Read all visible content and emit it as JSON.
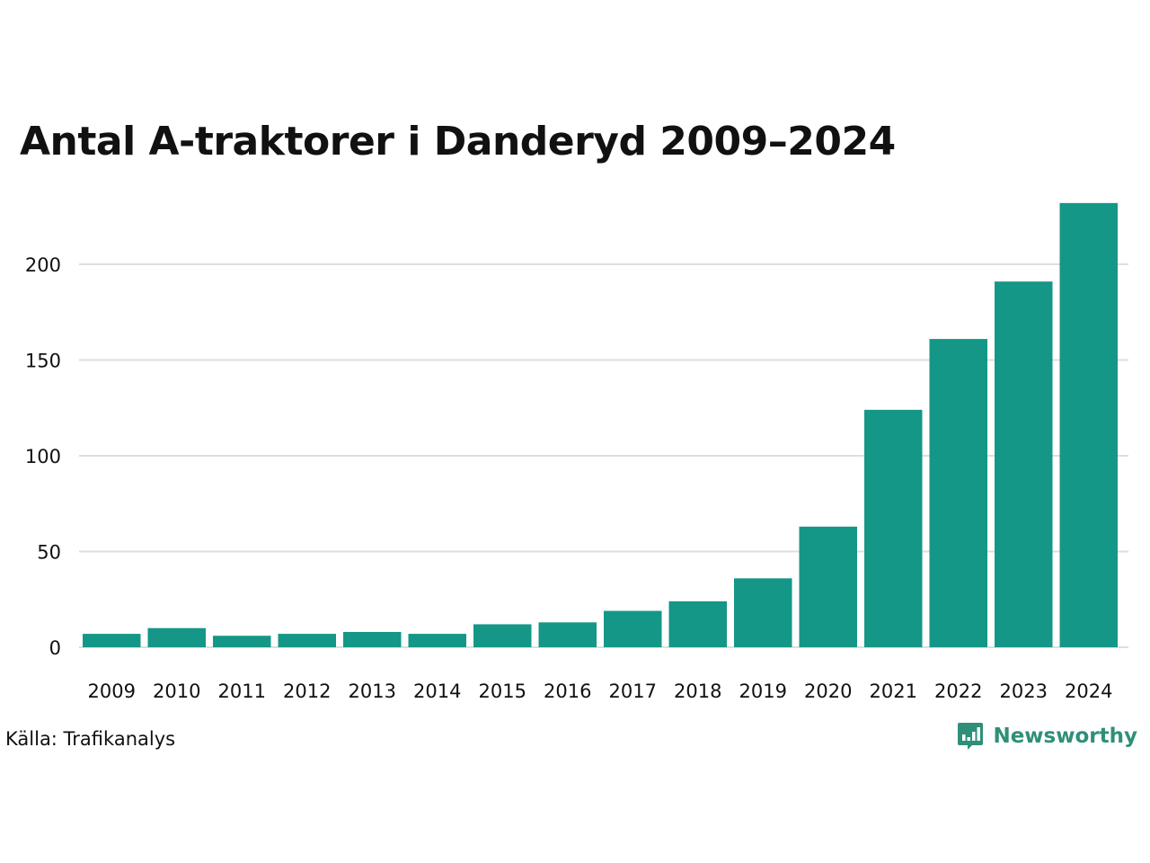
{
  "title": "Antal A-traktorer i Danderyd 2009–2024",
  "source": "Källa: Trafikanalys",
  "brand": {
    "name": "Newsworthy",
    "icon": "newsworthy-logo-icon"
  },
  "colors": {
    "bar": "#149787",
    "grid": "#dedede",
    "text": "#111111",
    "brand": "#2f8f79"
  },
  "chart_data": {
    "type": "bar",
    "title": "Antal A-traktorer i Danderyd 2009–2024",
    "xlabel": "",
    "ylabel": "",
    "categories": [
      "2009",
      "2010",
      "2011",
      "2012",
      "2013",
      "2014",
      "2015",
      "2016",
      "2017",
      "2018",
      "2019",
      "2020",
      "2021",
      "2022",
      "2023",
      "2024"
    ],
    "values": [
      7,
      10,
      6,
      7,
      8,
      7,
      12,
      13,
      19,
      24,
      36,
      63,
      124,
      161,
      191,
      232
    ],
    "yticks": [
      0,
      50,
      100,
      150,
      200
    ],
    "ylim": [
      0,
      232
    ],
    "grid": true,
    "legend": "none"
  }
}
